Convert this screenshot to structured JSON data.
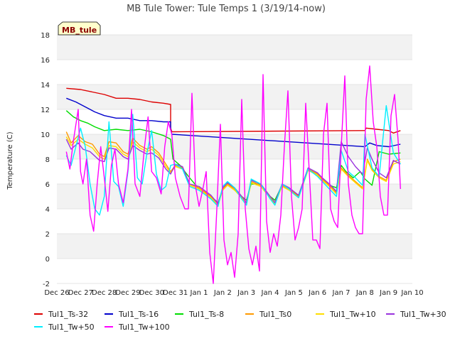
{
  "chart_data": {
    "type": "line",
    "title": "MB Tule Tower: Tule Temps 1 (3/19/14-now)",
    "xlabel": "",
    "ylabel": "Temperature (C)",
    "badge": "MB_tule",
    "xlim": [
      0,
      15
    ],
    "ylim": [
      -2,
      18
    ],
    "yticks": [
      -2,
      0,
      2,
      4,
      6,
      8,
      10,
      12,
      14,
      16,
      18
    ],
    "xtick_labels": [
      "Dec 26",
      "Dec 27",
      "Dec 28",
      "Dec 29",
      "Dec 30",
      "Dec 31",
      "Jan 1",
      "Jan 2",
      "Jan 3",
      "Jan 4",
      "Jan 5",
      "Jan 6",
      "Jan 7",
      "Jan 8",
      "Jan 9",
      "Jan 10"
    ],
    "series": [
      {
        "name": "Tul1_Ts-32",
        "color": "#dd0000",
        "x": [
          0.4,
          1.0,
          1.5,
          2.0,
          2.5,
          3.0,
          3.5,
          4.0,
          4.5,
          4.8,
          4.8,
          4.85,
          13.0,
          13.05,
          13.5,
          14.0,
          14.2,
          14.5
        ],
        "y": [
          13.7,
          13.6,
          13.4,
          13.2,
          12.9,
          12.9,
          12.8,
          12.6,
          12.5,
          12.4,
          10.5,
          10.2,
          10.3,
          10.5,
          10.4,
          10.3,
          10.1,
          10.3
        ]
      },
      {
        "name": "Tul1_Ts-16",
        "color": "#0000cc",
        "x": [
          0.4,
          0.8,
          1.2,
          1.6,
          2.0,
          2.5,
          3.0,
          3.5,
          4.0,
          4.5,
          4.8,
          4.8,
          4.85,
          13.0,
          13.2,
          13.5,
          14.0,
          14.5
        ],
        "y": [
          12.9,
          12.6,
          12.2,
          11.8,
          11.5,
          11.3,
          11.3,
          11.1,
          11.1,
          11.0,
          11.0,
          10.4,
          10.0,
          9.0,
          9.3,
          9.1,
          9.0,
          9.2
        ]
      },
      {
        "name": "Tul1_Ts-8",
        "color": "#00dd00",
        "x": [
          0.4,
          0.7,
          1.0,
          1.3,
          1.6,
          2.0,
          2.5,
          3.0,
          3.5,
          4.0,
          4.5,
          4.8,
          4.9,
          5.2,
          5.6,
          6.0,
          6.5,
          6.8,
          7.0,
          7.2,
          7.5,
          7.8,
          8.0,
          8.2,
          8.6,
          9.0,
          9.2,
          9.5,
          9.8,
          10.0,
          10.2,
          10.6,
          11.0,
          11.2,
          11.5,
          11.8,
          12.0,
          12.2,
          12.5,
          12.8,
          13.0,
          13.3,
          13.6,
          14.0,
          14.5
        ],
        "y": [
          11.9,
          11.4,
          11.1,
          10.9,
          10.6,
          10.3,
          10.4,
          10.3,
          10.4,
          10.2,
          9.9,
          9.6,
          8.0,
          7.5,
          6.5,
          5.6,
          5.0,
          4.5,
          5.6,
          6.1,
          5.6,
          5.0,
          4.7,
          6.0,
          6.0,
          5.0,
          4.7,
          5.9,
          5.6,
          5.3,
          5.1,
          7.2,
          6.8,
          6.4,
          5.9,
          5.7,
          7.5,
          7.0,
          6.5,
          7.0,
          6.4,
          5.9,
          8.6,
          8.4,
          8.5
        ]
      },
      {
        "name": "Tul1_Ts0",
        "color": "#ff9900",
        "x": [
          0.4,
          0.6,
          0.9,
          1.2,
          1.5,
          1.8,
          2.0,
          2.2,
          2.5,
          2.8,
          3.0,
          3.2,
          3.5,
          3.8,
          4.0,
          4.3,
          4.6,
          4.8,
          5.0,
          5.3,
          5.6,
          6.0,
          6.5,
          6.8,
          7.0,
          7.2,
          7.5,
          7.8,
          8.0,
          8.2,
          8.6,
          9.0,
          9.2,
          9.5,
          9.8,
          10.0,
          10.2,
          10.6,
          11.0,
          11.2,
          11.5,
          11.8,
          12.0,
          12.3,
          12.6,
          12.9,
          13.1,
          13.3,
          13.6,
          13.9,
          14.2,
          14.5
        ],
        "y": [
          10.2,
          9.3,
          9.9,
          9.4,
          9.2,
          8.4,
          8.2,
          9.4,
          9.3,
          8.6,
          8.4,
          9.7,
          9.1,
          8.8,
          9.0,
          8.5,
          7.6,
          7.0,
          7.5,
          7.3,
          6.0,
          5.7,
          5.0,
          4.4,
          5.6,
          6.0,
          5.6,
          5.0,
          4.5,
          6.2,
          5.9,
          5.0,
          4.5,
          5.9,
          5.6,
          5.3,
          5.0,
          7.2,
          6.8,
          6.4,
          5.9,
          5.3,
          7.3,
          6.7,
          6.2,
          5.7,
          8.0,
          7.2,
          6.6,
          6.3,
          7.8,
          8.0
        ]
      },
      {
        "name": "Tul1_Tw+10",
        "color": "#ffdd00",
        "x": [
          0.4,
          0.6,
          0.9,
          1.2,
          1.5,
          1.8,
          2.0,
          2.2,
          2.5,
          2.8,
          3.0,
          3.2,
          3.5,
          3.8,
          4.0,
          4.3,
          4.6,
          4.8,
          5.0,
          5.3,
          5.6,
          6.0,
          6.5,
          6.8,
          7.0,
          7.2,
          7.5,
          7.8,
          8.0,
          8.2,
          8.6,
          9.0,
          9.2,
          9.5,
          9.8,
          10.0,
          10.2,
          10.6,
          11.0,
          11.2,
          11.5,
          11.8,
          12.0,
          12.3,
          12.6,
          12.9,
          13.1,
          13.3,
          13.6,
          13.9,
          14.2,
          14.5
        ],
        "y": [
          9.8,
          9.1,
          9.6,
          9.2,
          8.9,
          8.2,
          8.0,
          9.1,
          9.0,
          8.4,
          8.2,
          9.4,
          8.9,
          8.6,
          8.8,
          8.3,
          7.4,
          6.9,
          7.4,
          7.2,
          5.9,
          5.6,
          4.9,
          4.3,
          5.5,
          5.9,
          5.5,
          4.9,
          4.4,
          6.1,
          5.8,
          4.9,
          4.4,
          5.8,
          5.5,
          5.2,
          4.9,
          7.1,
          6.7,
          6.3,
          5.8,
          5.2,
          7.2,
          6.6,
          6.1,
          5.6,
          7.9,
          7.1,
          6.5,
          6.2,
          7.6,
          7.8
        ]
      },
      {
        "name": "Tul1_Tw+30",
        "color": "#9933dd",
        "x": [
          0.4,
          0.6,
          0.9,
          1.1,
          1.4,
          1.8,
          2.0,
          2.2,
          2.5,
          2.8,
          3.0,
          3.2,
          3.5,
          3.8,
          4.0,
          4.3,
          4.6,
          4.8,
          5.0,
          5.3,
          5.6,
          6.0,
          6.5,
          6.8,
          7.0,
          7.2,
          7.5,
          7.8,
          8.0,
          8.2,
          8.6,
          9.0,
          9.2,
          9.5,
          9.8,
          10.0,
          10.2,
          10.6,
          11.0,
          11.2,
          11.5,
          11.8,
          12.0,
          12.3,
          12.6,
          12.9,
          13.1,
          13.3,
          13.6,
          13.9,
          14.2,
          14.5
        ],
        "y": [
          9.6,
          8.8,
          9.3,
          8.8,
          8.6,
          7.9,
          7.8,
          8.9,
          8.8,
          8.2,
          8.0,
          9.1,
          8.7,
          8.4,
          8.5,
          8.1,
          7.2,
          6.8,
          7.6,
          7.4,
          6.0,
          5.8,
          5.1,
          4.4,
          5.7,
          6.1,
          5.7,
          5.0,
          4.5,
          6.3,
          6.0,
          5.0,
          4.5,
          6.0,
          5.7,
          5.4,
          5.1,
          7.3,
          6.9,
          6.5,
          6.0,
          5.4,
          9.4,
          8.2,
          7.4,
          6.8,
          8.9,
          8.0,
          6.9,
          6.5,
          7.9,
          7.6
        ]
      },
      {
        "name": "Tul1_Tw+50",
        "color": "#00eeff",
        "x": [
          0.4,
          0.6,
          0.8,
          1.0,
          1.2,
          1.4,
          1.6,
          1.8,
          2.0,
          2.2,
          2.4,
          2.6,
          2.8,
          3.0,
          3.2,
          3.4,
          3.6,
          3.8,
          4.0,
          4.2,
          4.4,
          4.6,
          4.8,
          5.0,
          5.3,
          5.6,
          6.0,
          6.5,
          6.8,
          7.0,
          7.2,
          7.5,
          7.8,
          8.0,
          8.2,
          8.6,
          9.0,
          9.2,
          9.5,
          9.8,
          10.0,
          10.2,
          10.6,
          11.0,
          11.2,
          11.5,
          11.8,
          12.0,
          12.3,
          12.6,
          12.9,
          13.0,
          13.3,
          13.6,
          13.9,
          14.2,
          14.5
        ],
        "y": [
          8.3,
          7.5,
          9.0,
          10.5,
          9.0,
          6.0,
          4.0,
          3.5,
          5.0,
          11.0,
          6.2,
          5.8,
          4.2,
          7.0,
          11.6,
          6.5,
          6.0,
          8.5,
          10.3,
          6.8,
          5.5,
          5.8,
          7.5,
          7.6,
          7.2,
          5.8,
          5.5,
          4.8,
          4.2,
          5.8,
          6.2,
          5.7,
          4.8,
          4.3,
          6.4,
          6.0,
          4.8,
          4.3,
          6.0,
          5.6,
          5.2,
          4.9,
          7.2,
          6.6,
          6.2,
          5.6,
          5.0,
          8.7,
          7.0,
          6.5,
          5.9,
          10.0,
          7.3,
          6.6,
          12.3,
          8.5,
          7.6
        ]
      },
      {
        "name": "Tul1_Tw+100",
        "color": "#ff00ff",
        "x": [
          0.4,
          0.55,
          0.7,
          0.9,
          1.0,
          1.1,
          1.25,
          1.4,
          1.55,
          1.7,
          1.85,
          2.0,
          2.15,
          2.3,
          2.45,
          2.6,
          2.8,
          3.0,
          3.15,
          3.3,
          3.5,
          3.7,
          3.85,
          4.0,
          4.2,
          4.4,
          4.55,
          4.7,
          4.85,
          5.0,
          5.2,
          5.4,
          5.55,
          5.7,
          5.85,
          6.0,
          6.15,
          6.3,
          6.45,
          6.6,
          6.75,
          6.9,
          7.05,
          7.2,
          7.35,
          7.5,
          7.65,
          7.8,
          7.95,
          8.1,
          8.25,
          8.4,
          8.55,
          8.7,
          8.85,
          9.0,
          9.15,
          9.3,
          9.45,
          9.6,
          9.75,
          9.9,
          10.05,
          10.2,
          10.35,
          10.5,
          10.65,
          10.8,
          10.95,
          11.1,
          11.25,
          11.4,
          11.55,
          11.7,
          11.85,
          12.0,
          12.15,
          12.3,
          12.45,
          12.6,
          12.75,
          12.9,
          13.05,
          13.2,
          13.35,
          13.5,
          13.65,
          13.8,
          13.95,
          14.1,
          14.25,
          14.4,
          14.5
        ],
        "y": [
          8.6,
          7.2,
          9.5,
          12.0,
          7.0,
          6.0,
          8.0,
          3.5,
          2.2,
          6.0,
          9.0,
          6.5,
          3.8,
          7.5,
          8.8,
          6.0,
          4.5,
          7.2,
          12.0,
          6.0,
          5.0,
          9.0,
          11.4,
          7.0,
          6.5,
          5.2,
          9.0,
          11.0,
          10.0,
          6.5,
          5.0,
          4.0,
          4.0,
          13.3,
          5.8,
          4.2,
          5.5,
          7.0,
          0.5,
          -2.0,
          4.0,
          10.8,
          1.5,
          -0.5,
          0.5,
          -1.5,
          2.0,
          12.8,
          4.0,
          0.8,
          -0.5,
          1.0,
          -1.0,
          14.8,
          3.0,
          0.5,
          2.0,
          1.0,
          3.5,
          9.0,
          13.5,
          5.0,
          1.5,
          2.5,
          4.0,
          12.5,
          7.0,
          1.5,
          1.5,
          0.8,
          10.0,
          12.5,
          4.0,
          3.0,
          2.5,
          9.0,
          14.7,
          6.0,
          3.5,
          2.5,
          2.0,
          2.0,
          12.8,
          15.5,
          11.0,
          9.0,
          5.0,
          3.5,
          3.5,
          11.5,
          13.2,
          9.5,
          5.6
        ]
      }
    ]
  }
}
